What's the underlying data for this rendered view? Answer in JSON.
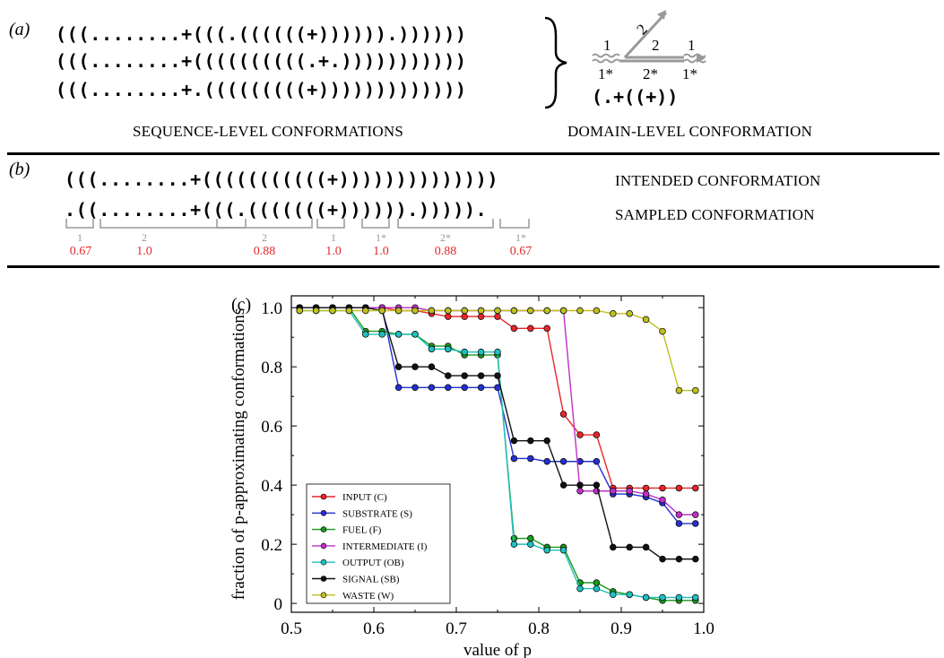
{
  "panel_a": {
    "label": "(a)",
    "sequences": [
      "(((........+(((.((((((+)))))).))))))",
      "(((........+((((((((((.+.)))))))))))",
      "(((........+.(((((((((+)))))))))))))"
    ],
    "seq_caption": "SEQUENCE-LEVEL CONFORMATIONS",
    "domain_caption": "DOMAIN-LEVEL CONFORMATION",
    "domain_conf": "(.+((+))",
    "domain_labels": {
      "top_left": "1",
      "diag": "2",
      "top_mid": "2",
      "top_right": "1",
      "bot_left": "1*",
      "bot_mid": "2*",
      "bot_right": "1*"
    }
  },
  "panel_b": {
    "label": "(b)",
    "intended": "(((........+(((((((((((+))))))))))))))",
    "sampled": ".((........+(((.(((((((+)))))).))))).",
    "intended_caption": "INTENDED CONFORMATION",
    "sampled_caption": "SAMPLED CONFORMATION",
    "segments": [
      {
        "label": "1",
        "score": "0.67"
      },
      {
        "label": "2",
        "score": "1.0"
      },
      {
        "label": "2",
        "score": "0.88"
      },
      {
        "label": "1",
        "score": "1.0"
      },
      {
        "label": "1*",
        "score": "1.0"
      },
      {
        "label": "2*",
        "score": "0.88"
      },
      {
        "label": "1*",
        "score": "0.67"
      }
    ]
  },
  "panel_c": {
    "label": "(c)"
  },
  "chart_data": {
    "type": "line",
    "xlabel": "value of p",
    "ylabel": "fraction of p-approximating conformations",
    "xlim": [
      0.5,
      1.0
    ],
    "ylim": [
      -0.03,
      1.04
    ],
    "xticks": [
      "0.5",
      "0.6",
      "0.7",
      "0.8",
      "0.9",
      "1.0"
    ],
    "yticks": [
      "0",
      "0.2",
      "0.4",
      "0.6",
      "0.8",
      "1.0"
    ],
    "legend_position": "lower-left",
    "x": [
      0.51,
      0.53,
      0.55,
      0.57,
      0.59,
      0.61,
      0.63,
      0.65,
      0.67,
      0.69,
      0.71,
      0.73,
      0.75,
      0.77,
      0.79,
      0.81,
      0.83,
      0.85,
      0.87,
      0.89,
      0.91,
      0.93,
      0.95,
      0.97,
      0.99
    ],
    "series": [
      {
        "name": "INPUT (C)",
        "color": "#e8262a",
        "values": [
          1.0,
          1.0,
          1.0,
          1.0,
          1.0,
          1.0,
          0.99,
          0.99,
          0.98,
          0.97,
          0.97,
          0.97,
          0.97,
          0.93,
          0.93,
          0.93,
          0.64,
          0.57,
          0.57,
          0.39,
          0.39,
          0.39,
          0.39,
          0.39,
          0.39
        ]
      },
      {
        "name": "SUBSTRATE (S)",
        "color": "#2530d0",
        "values": [
          1.0,
          1.0,
          1.0,
          1.0,
          1.0,
          1.0,
          0.73,
          0.73,
          0.73,
          0.73,
          0.73,
          0.73,
          0.73,
          0.49,
          0.49,
          0.48,
          0.48,
          0.48,
          0.48,
          0.37,
          0.37,
          0.36,
          0.34,
          0.27,
          0.27
        ]
      },
      {
        "name": "FUEL (F)",
        "color": "#1a9a1a",
        "values": [
          1.0,
          1.0,
          1.0,
          1.0,
          0.92,
          0.92,
          0.91,
          0.91,
          0.87,
          0.87,
          0.84,
          0.84,
          0.84,
          0.22,
          0.22,
          0.19,
          0.19,
          0.07,
          0.07,
          0.04,
          0.03,
          0.02,
          0.01,
          0.01,
          0.01
        ]
      },
      {
        "name": "INTERMEDIATE (I)",
        "color": "#c030c8",
        "values": [
          1.0,
          1.0,
          1.0,
          1.0,
          1.0,
          1.0,
          1.0,
          1.0,
          0.99,
          0.99,
          0.99,
          0.99,
          0.99,
          0.99,
          0.99,
          0.99,
          0.99,
          0.38,
          0.38,
          0.38,
          0.38,
          0.37,
          0.35,
          0.3,
          0.3
        ]
      },
      {
        "name": "OUTPUT (OB)",
        "color": "#20c0c0",
        "values": [
          0.99,
          0.99,
          0.99,
          0.99,
          0.91,
          0.91,
          0.91,
          0.91,
          0.86,
          0.86,
          0.85,
          0.85,
          0.85,
          0.2,
          0.2,
          0.18,
          0.18,
          0.05,
          0.05,
          0.03,
          0.03,
          0.02,
          0.02,
          0.02,
          0.02
        ]
      },
      {
        "name": "SIGNAL (SB)",
        "color": "#111111",
        "values": [
          1.0,
          1.0,
          1.0,
          1.0,
          1.0,
          0.99,
          0.8,
          0.8,
          0.8,
          0.77,
          0.77,
          0.77,
          0.77,
          0.55,
          0.55,
          0.55,
          0.4,
          0.4,
          0.4,
          0.19,
          0.19,
          0.19,
          0.15,
          0.15,
          0.15
        ]
      },
      {
        "name": "WASTE (W)",
        "color": "#c0c020",
        "values": [
          0.99,
          0.99,
          0.99,
          0.99,
          0.99,
          0.99,
          0.99,
          0.99,
          0.99,
          0.99,
          0.99,
          0.99,
          0.99,
          0.99,
          0.99,
          0.99,
          0.99,
          0.99,
          0.99,
          0.98,
          0.98,
          0.96,
          0.92,
          0.72,
          0.72
        ]
      }
    ]
  }
}
